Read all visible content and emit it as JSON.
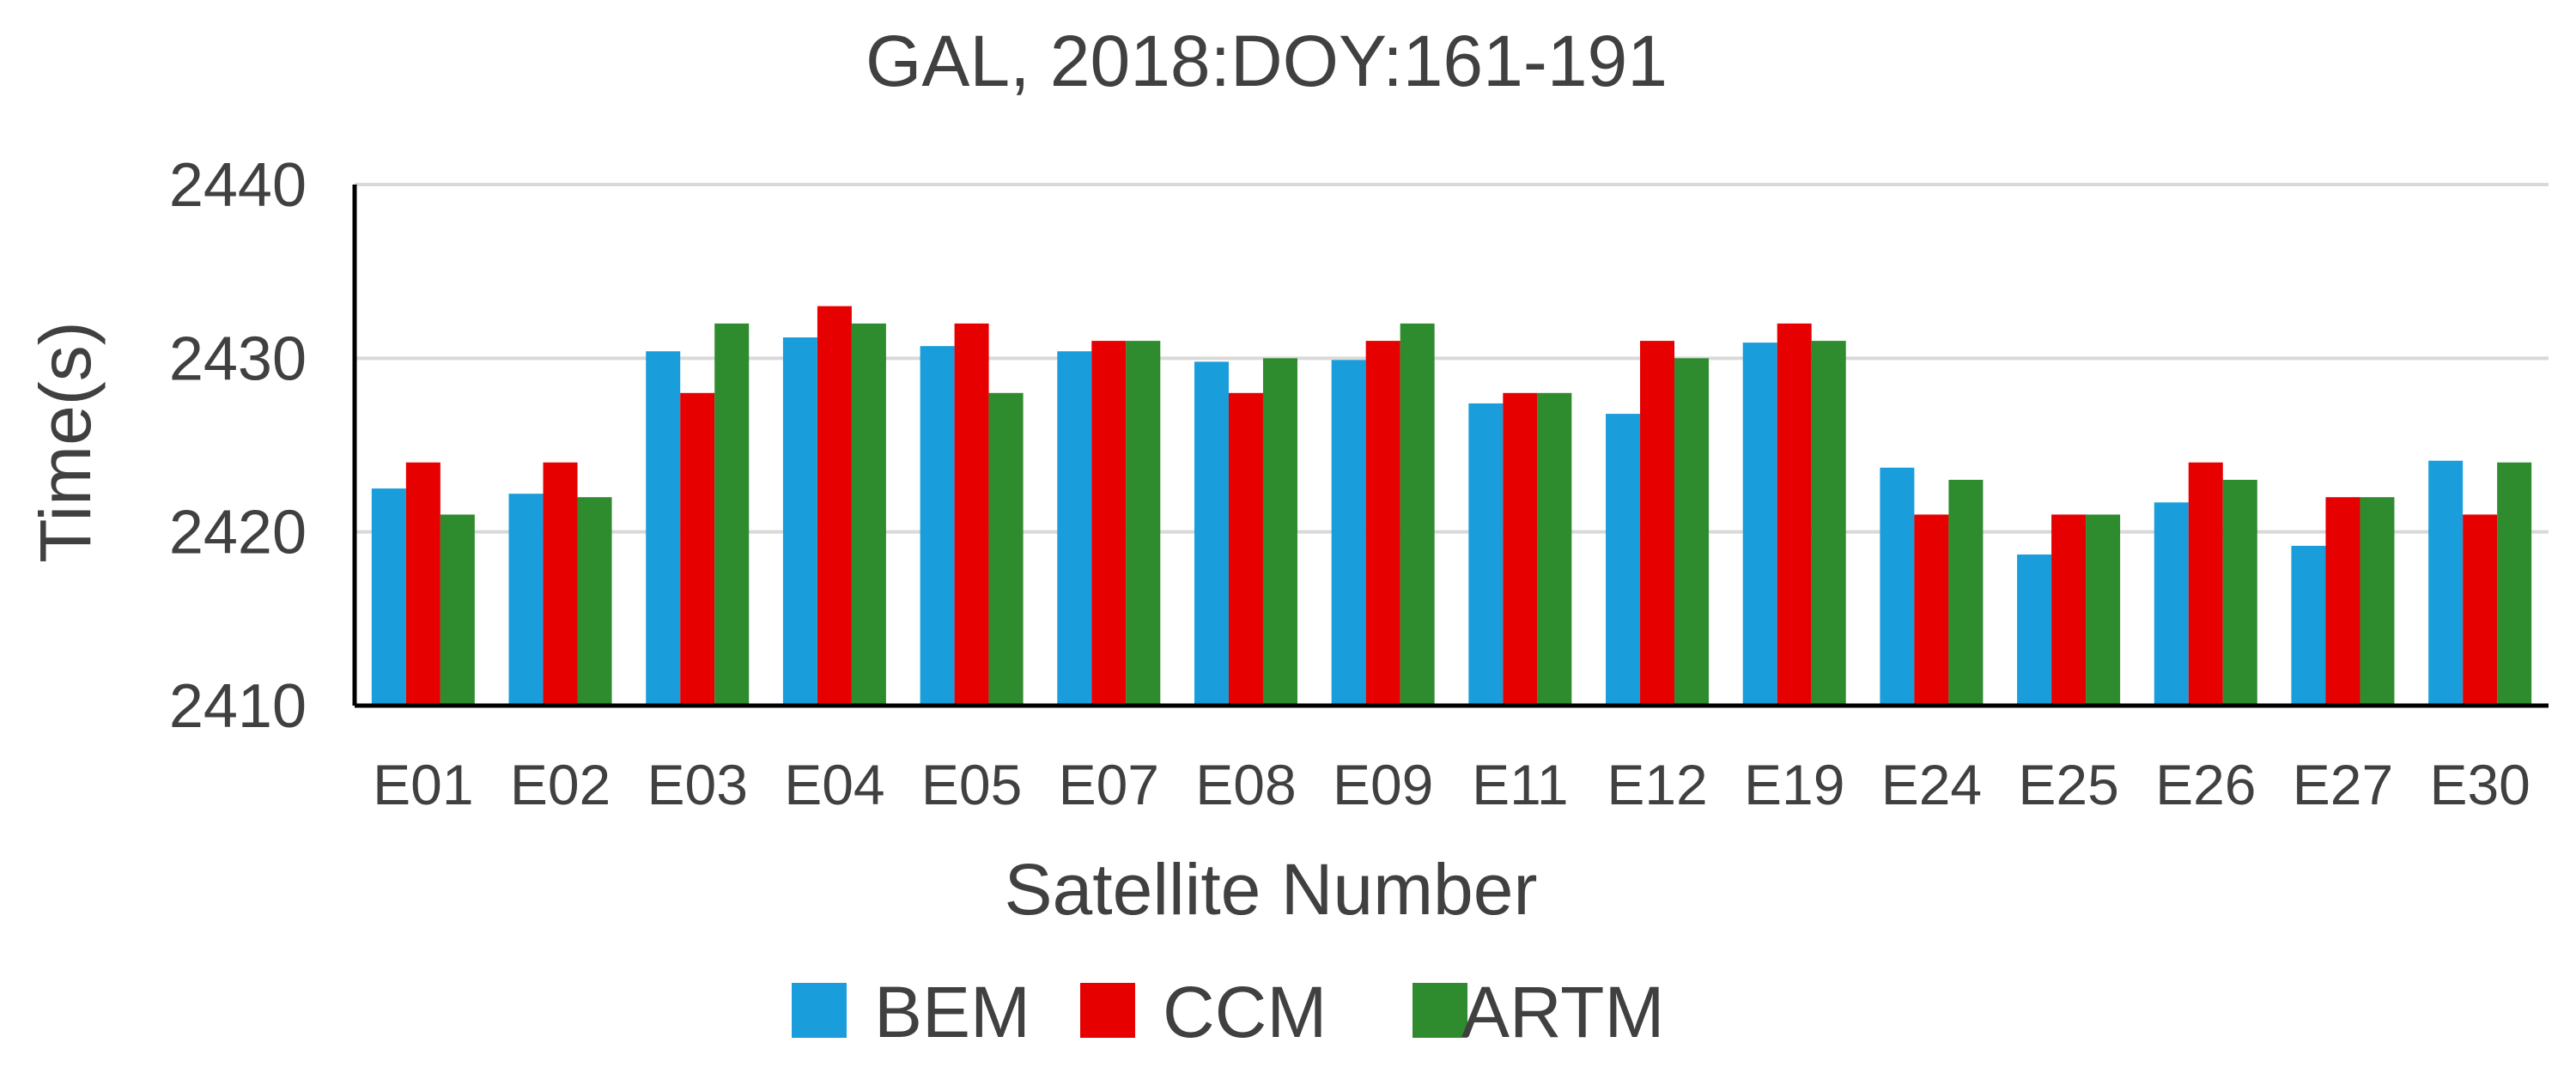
{
  "chart_data": {
    "type": "bar",
    "title": "GAL, 2018:DOY:161-191",
    "xlabel": "Satellite Number",
    "ylabel": "Time(s)",
    "ylim": [
      2410,
      2440
    ],
    "yticks": [
      2410,
      2420,
      2430,
      2440
    ],
    "grid": true,
    "legend_position": "bottom",
    "categories": [
      "E01",
      "E02",
      "E03",
      "E04",
      "E05",
      "E07",
      "E08",
      "E09",
      "E11",
      "E12",
      "E19",
      "E24",
      "E25",
      "E26",
      "E27",
      "E30"
    ],
    "series": [
      {
        "name": "BEM",
        "color": "#1a9ddb",
        "values": [
          2422.5,
          2422.2,
          2430.4,
          2431.2,
          2430.7,
          2430.4,
          2429.8,
          2429.9,
          2427.4,
          2426.8,
          2430.9,
          2423.7,
          2418.7,
          2421.7,
          2419.2,
          2424.1
        ]
      },
      {
        "name": "CCM",
        "color": "#e60000",
        "values": [
          2424,
          2424,
          2428,
          2433,
          2432,
          2431,
          2428,
          2431,
          2428,
          2431,
          2432,
          2421,
          2421,
          2424,
          2422,
          2421
        ]
      },
      {
        "name": "ARTM",
        "color": "#2e8b2e",
        "values": [
          2421,
          2422,
          2432,
          2432,
          2428,
          2431,
          2430,
          2432,
          2428,
          2430,
          2431,
          2423,
          2421,
          2423,
          2422,
          2424
        ]
      }
    ]
  }
}
